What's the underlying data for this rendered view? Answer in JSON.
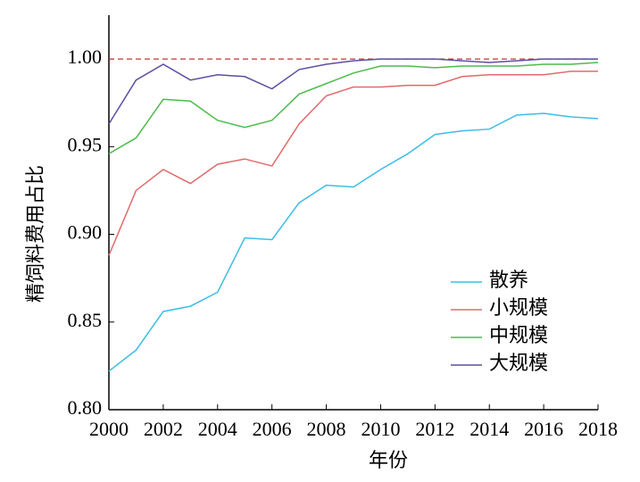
{
  "chart_data": {
    "type": "line",
    "x_label": "年份",
    "y_label": "精饲料费用占比",
    "x": [
      2000,
      2001,
      2002,
      2003,
      2004,
      2005,
      2006,
      2007,
      2008,
      2009,
      2010,
      2011,
      2012,
      2013,
      2014,
      2015,
      2016,
      2017,
      2018
    ],
    "xlim": [
      2000,
      2018
    ],
    "xticks": [
      2000,
      2002,
      2004,
      2006,
      2008,
      2010,
      2012,
      2014,
      2016,
      2018
    ],
    "ylim": [
      0.8,
      1.025
    ],
    "yticks": [
      {
        "value": 0.8,
        "label": "0.80"
      },
      {
        "value": 0.85,
        "label": "0.85"
      },
      {
        "value": 0.9,
        "label": "0.90"
      },
      {
        "value": 0.95,
        "label": "0.95"
      },
      {
        "value": 1.0,
        "label": "1.00"
      }
    ],
    "reference_line": {
      "value": 1.0,
      "color": "#c0392b"
    },
    "series": [
      {
        "name": "散养",
        "color": "#3bbde8",
        "values": [
          0.822,
          0.834,
          0.856,
          0.859,
          0.867,
          0.898,
          0.897,
          0.918,
          0.928,
          0.927,
          0.937,
          0.946,
          0.957,
          0.959,
          0.96,
          0.968,
          0.969,
          0.967,
          0.966
        ]
      },
      {
        "name": "小规模",
        "color": "#e06a6a",
        "values": [
          0.888,
          0.925,
          0.937,
          0.929,
          0.94,
          0.943,
          0.939,
          0.963,
          0.979,
          0.984,
          0.984,
          0.985,
          0.985,
          0.99,
          0.991,
          0.991,
          0.991,
          0.993,
          0.993
        ]
      },
      {
        "name": "中规模",
        "color": "#4cbb4c",
        "values": [
          0.946,
          0.955,
          0.977,
          0.976,
          0.965,
          0.961,
          0.965,
          0.98,
          0.986,
          0.992,
          0.996,
          0.996,
          0.995,
          0.996,
          0.996,
          0.996,
          0.997,
          0.997,
          0.998
        ]
      },
      {
        "name": "大规模",
        "color": "#5a4fa0",
        "values": [
          0.963,
          0.988,
          0.997,
          0.988,
          0.991,
          0.99,
          0.983,
          0.994,
          0.997,
          0.999,
          1.0,
          1.0,
          1.0,
          0.999,
          0.998,
          0.999,
          1.0,
          1.0,
          1.0
        ]
      }
    ]
  }
}
